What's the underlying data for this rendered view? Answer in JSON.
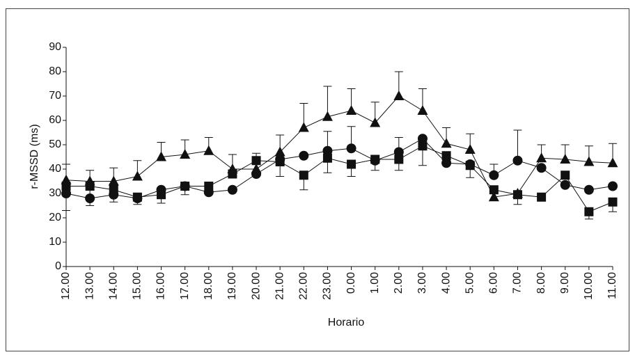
{
  "chart_data": {
    "type": "line",
    "y_label": "r-MSSD (ms)",
    "x_label": "Horario",
    "categories": [
      "12.00",
      "13.00",
      "14.00",
      "15.00",
      "16.00",
      "17.00",
      "18.00",
      "19.00",
      "20.00",
      "21.00",
      "22.00",
      "23.00",
      "0.00",
      "1.00",
      "2.00",
      "3.00",
      "4.00",
      "5.00",
      "6.00",
      "7.00",
      "8.00",
      "9.00",
      "10.00",
      "11.00"
    ],
    "ylim": [
      0,
      90
    ],
    "yticks": [
      0,
      10,
      20,
      30,
      40,
      50,
      60,
      70,
      80,
      90
    ],
    "series": [
      {
        "marker": "triangle",
        "color": "#111111",
        "error_direction": "up",
        "values": [
          35.5,
          35,
          35,
          37,
          45,
          46,
          47.5,
          40,
          40,
          47,
          57,
          61.5,
          64,
          59,
          70,
          64,
          50.5,
          48,
          28.5,
          30,
          44.5,
          44,
          43,
          42.5
        ],
        "errors": [
          6.5,
          4.5,
          5.5,
          6.5,
          6,
          6,
          5.5,
          6,
          6.5,
          7,
          10,
          12.5,
          9,
          8.5,
          10,
          9,
          6.5,
          6.5,
          null,
          null,
          5.5,
          6,
          6.5,
          8
        ]
      },
      {
        "marker": "circle",
        "color": "#111111",
        "error_direction": "up",
        "values": [
          30,
          28,
          29.5,
          28,
          31.5,
          33,
          30.5,
          31.5,
          38,
          44,
          45.5,
          47.5,
          48.5,
          43.5,
          47,
          52.5,
          42.5,
          42,
          37.5,
          43.5,
          40.5,
          33.5,
          31.5,
          33
        ],
        "errors": [
          null,
          null,
          null,
          null,
          null,
          null,
          null,
          null,
          null,
          null,
          null,
          8,
          9,
          null,
          6,
          null,
          null,
          null,
          4.5,
          12.5,
          null,
          null,
          null,
          null
        ]
      },
      {
        "marker": "square",
        "color": "#111111",
        "error_direction": "down",
        "values": [
          33,
          33,
          31.5,
          28.5,
          29.5,
          33,
          33,
          38,
          43.5,
          43,
          37.5,
          44.5,
          42,
          44,
          44,
          49.5,
          45.5,
          41.5,
          31.5,
          29.5,
          28.5,
          37.5,
          22.5,
          26.5
        ],
        "errors": [
          10,
          8,
          5,
          3,
          3.5,
          3.5,
          null,
          null,
          null,
          6,
          6,
          6,
          5,
          4.5,
          4.5,
          8,
          null,
          5,
          null,
          4,
          null,
          null,
          3,
          4
        ]
      }
    ]
  }
}
